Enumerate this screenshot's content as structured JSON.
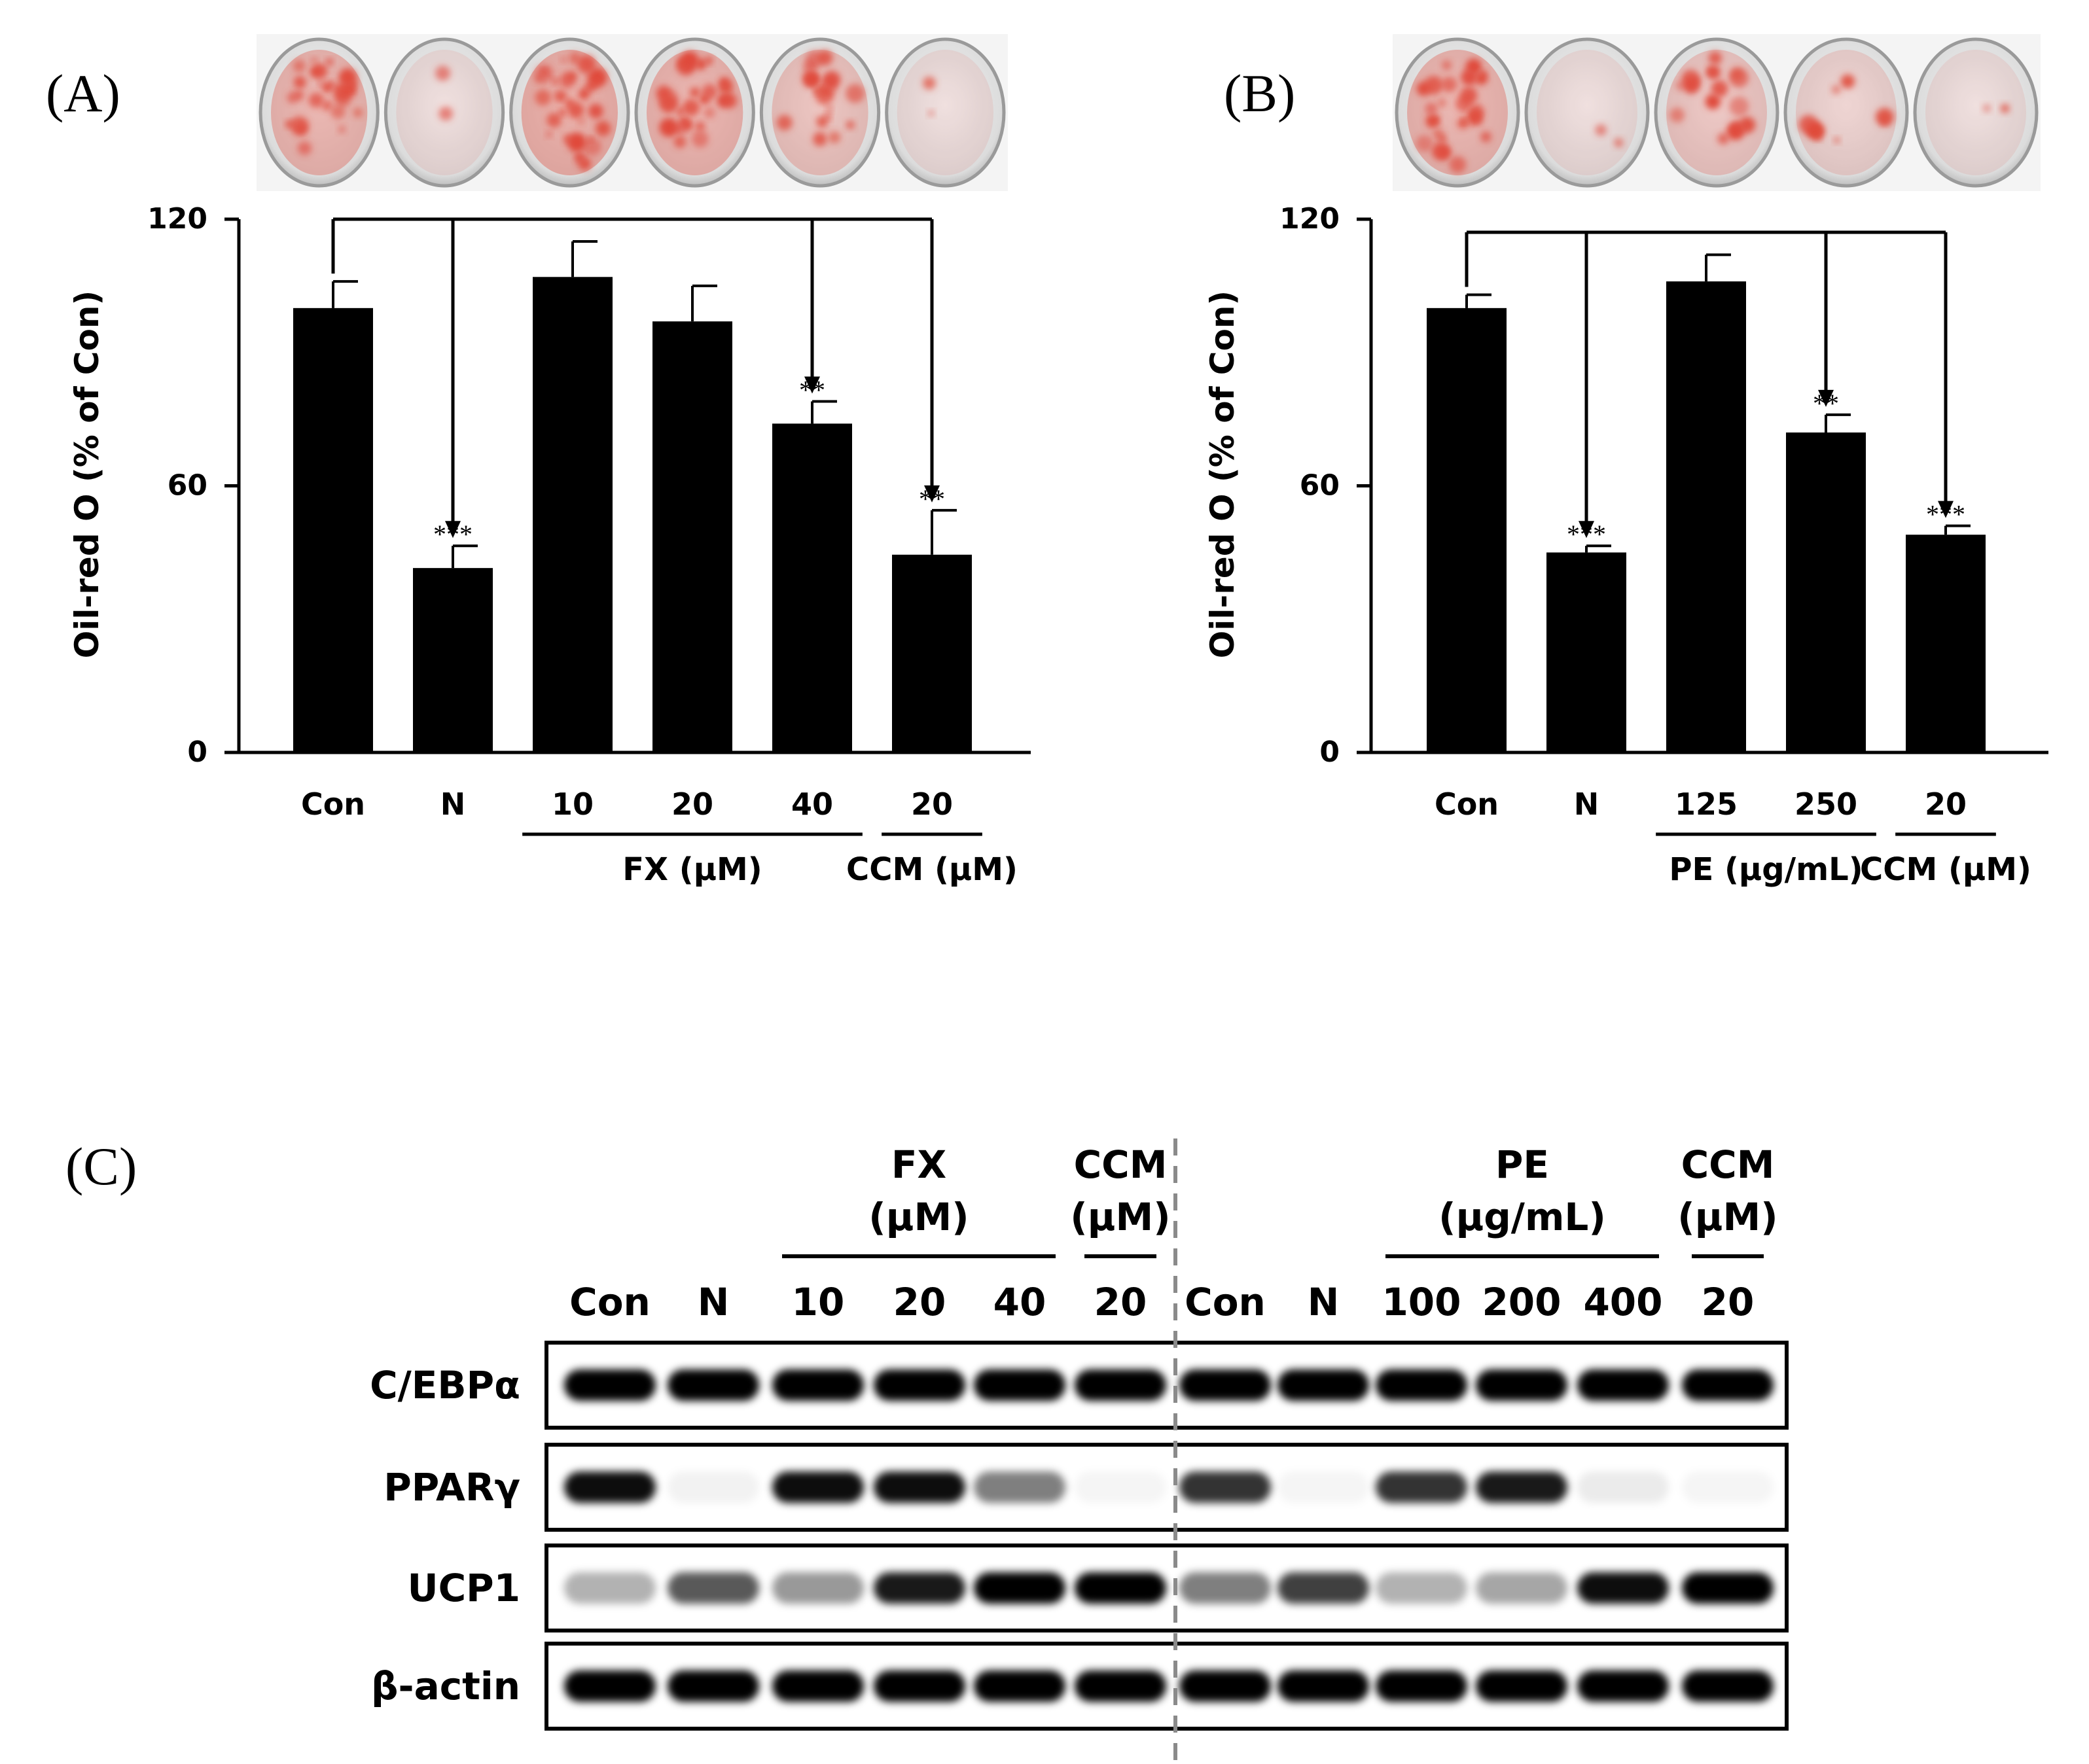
{
  "panels": {
    "A": "(A)",
    "B": "(B)",
    "C": "(C)"
  },
  "colors": {
    "bar": "#000000",
    "stain": "#e0493a",
    "well": "#eeeeee",
    "divider": "#8a8a8a"
  },
  "chart_data": [
    {
      "panel": "A",
      "type": "bar",
      "categories": [
        "Con",
        "N",
        "10",
        "20",
        "40",
        "20"
      ],
      "values": [
        100,
        41.5,
        107,
        97,
        74,
        44.5
      ],
      "errors": [
        6,
        5,
        8,
        8,
        5,
        10
      ],
      "significance": [
        "",
        "***",
        "",
        "",
        "**",
        "**"
      ],
      "ylabel": "Oil-red O (% of Con)",
      "yticks": [
        "0",
        "60",
        "120"
      ],
      "ylim": [
        0,
        120
      ],
      "groups": [
        {
          "label": "FX (μM)",
          "from": 2,
          "to": 4
        },
        {
          "label": "CCM (μM)",
          "from": 5,
          "to": 5
        }
      ],
      "comparisons": {
        "reference": 0,
        "targets": [
          1,
          4,
          5
        ]
      },
      "stain_levels": [
        0.85,
        0.05,
        1.0,
        0.9,
        0.6,
        0.05
      ]
    },
    {
      "panel": "B",
      "type": "bar",
      "categories": [
        "Con",
        "N",
        "125",
        "250",
        "20"
      ],
      "values": [
        100,
        45,
        106,
        72,
        49
      ],
      "errors": [
        3,
        1.5,
        6,
        4,
        2
      ],
      "significance": [
        "",
        "***",
        "",
        "**",
        "***"
      ],
      "ylabel": "Oil-red O (% of Con)",
      "yticks": [
        "0",
        "60",
        "120"
      ],
      "ylim": [
        0,
        120
      ],
      "groups": [
        {
          "label": "PE (μg/mL)",
          "from": 2,
          "to": 3
        },
        {
          "label": "CCM (μM)",
          "from": 4,
          "to": 4
        }
      ],
      "comparisons": {
        "reference": 0,
        "targets": [
          1,
          3,
          4
        ]
      },
      "stain_levels": [
        0.85,
        0.05,
        0.55,
        0.3,
        0.05
      ]
    }
  ],
  "blot": {
    "top_groups": [
      {
        "label_lines": [
          "FX",
          "(μM)"
        ],
        "from": 2,
        "to": 4
      },
      {
        "label_lines": [
          "CCM",
          "(μM)"
        ],
        "from": 5,
        "to": 5
      },
      {
        "label_lines": [
          "PE",
          "(μg/mL)"
        ],
        "from": 8,
        "to": 10
      },
      {
        "label_lines": [
          "CCM",
          "(μM)"
        ],
        "from": 11,
        "to": 11
      }
    ],
    "lanes": [
      "Con",
      "N",
      "10",
      "20",
      "40",
      "20",
      "Con",
      "N",
      "100",
      "200",
      "400",
      "20"
    ],
    "proteins": [
      {
        "name": "C/EBPα",
        "intensity": [
          1,
          1,
          1,
          1,
          1,
          1,
          1,
          1,
          1,
          1,
          1,
          1
        ]
      },
      {
        "name": "PPARγ",
        "intensity": [
          0.95,
          0.05,
          0.95,
          0.95,
          0.5,
          0.04,
          0.8,
          0.04,
          0.8,
          0.9,
          0.08,
          0.04
        ]
      },
      {
        "name": "UCP1",
        "intensity": [
          0.3,
          0.65,
          0.4,
          0.9,
          1,
          1,
          0.5,
          0.75,
          0.3,
          0.35,
          0.95,
          1
        ]
      },
      {
        "name": "β-actin",
        "intensity": [
          1,
          1,
          1,
          1,
          1,
          1,
          1,
          1,
          1,
          1,
          1,
          1
        ]
      }
    ]
  }
}
